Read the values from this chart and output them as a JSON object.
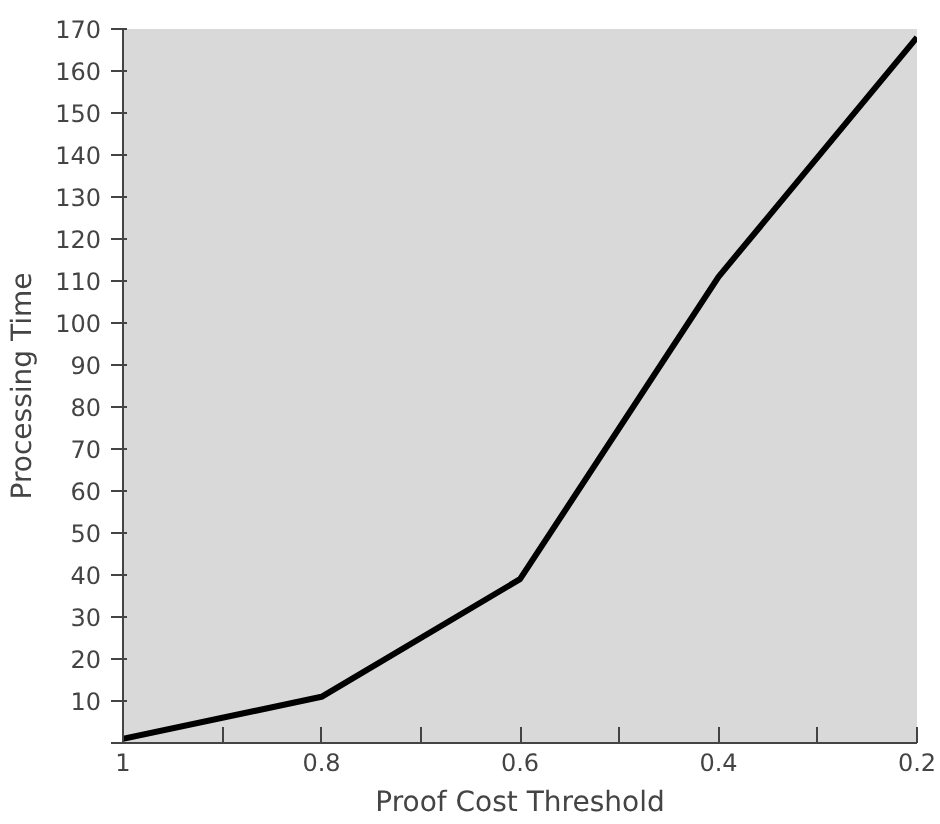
{
  "chart_data": {
    "type": "line",
    "xlabel": "Proof Cost Threshold",
    "ylabel": "Processing Time",
    "x": [
      1,
      0.8,
      0.6,
      0.4,
      0.2
    ],
    "series": [
      {
        "color": "#000000",
        "values": [
          1,
          11,
          39,
          111,
          168
        ]
      }
    ],
    "xlim": [
      1,
      0.2
    ],
    "ylim": [
      0,
      170
    ],
    "xticks": [
      1,
      {
        "value": 0.9,
        "label": null
      },
      0.8,
      {
        "value": 0.7,
        "label": null
      },
      0.6,
      {
        "value": 0.5,
        "label": null
      },
      0.4,
      {
        "value": 0.3,
        "label": null
      },
      0.2
    ],
    "yticks": [
      {
        "value": 0,
        "label": null
      },
      10,
      20,
      30,
      40,
      50,
      60,
      70,
      80,
      90,
      100,
      110,
      120,
      130,
      140,
      150,
      160,
      170
    ],
    "marker": "none",
    "line_style": "solid"
  }
}
